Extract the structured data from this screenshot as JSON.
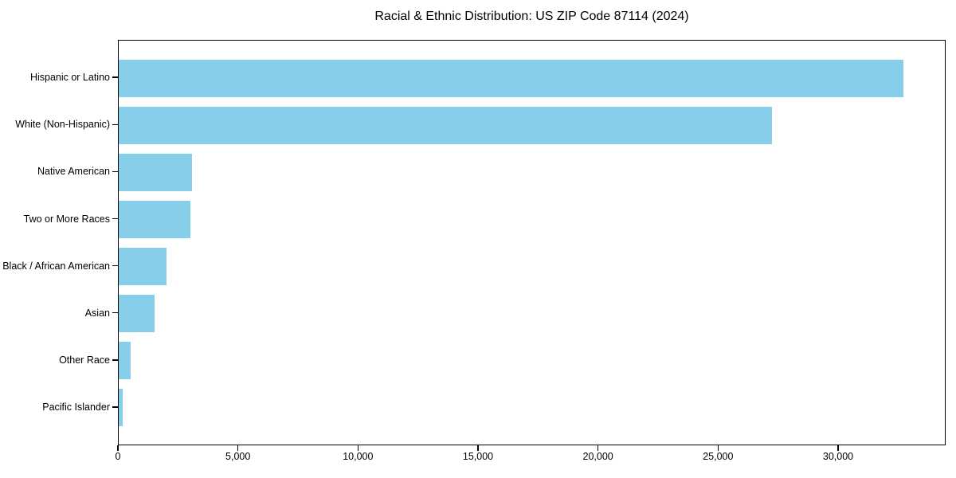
{
  "chart_data": {
    "type": "bar",
    "orientation": "horizontal",
    "title": "Racial & Ethnic Distribution: US ZIP Code 87114 (2024)",
    "categories": [
      "Hispanic or Latino",
      "White (Non-Hispanic)",
      "Native American",
      "Two or More Races",
      "Black / African American",
      "Asian",
      "Other Race",
      "Pacific Islander"
    ],
    "values": [
      32750,
      27250,
      3050,
      3000,
      2000,
      1500,
      500,
      150
    ],
    "xlabel": "",
    "ylabel": "",
    "xlim": [
      0,
      34480
    ],
    "xticks": [
      0,
      5000,
      10000,
      15000,
      20000,
      25000,
      30000
    ],
    "xtick_labels": [
      "0",
      "5,000",
      "10,000",
      "15,000",
      "20,000",
      "25,000",
      "30,000"
    ],
    "grid": false,
    "legend_position": "none",
    "bar_color": "#87CEEB"
  },
  "colors": {
    "bar": "#87CEEB",
    "axis": "#000000",
    "background": "#ffffff",
    "text": "#000000"
  }
}
